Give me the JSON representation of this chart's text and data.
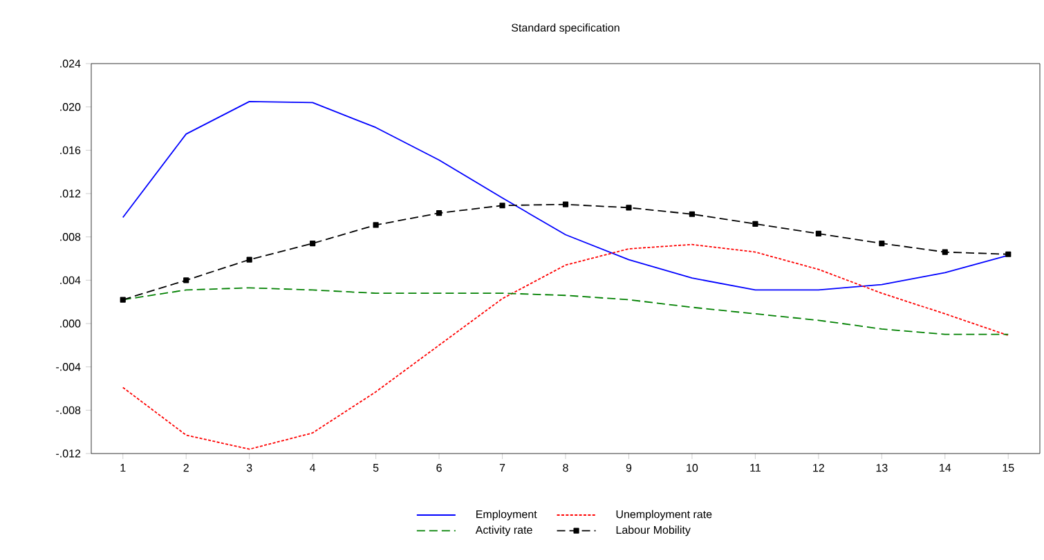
{
  "chart_data": {
    "type": "line",
    "title": "Standard specification",
    "categories": [
      "1",
      "2",
      "3",
      "4",
      "5",
      "6",
      "7",
      "8",
      "9",
      "10",
      "11",
      "12",
      "13",
      "14",
      "15"
    ],
    "series": [
      {
        "name": "Employment",
        "color": "#0000ff",
        "line_style": "solid",
        "values": [
          0.0098,
          0.0175,
          0.0205,
          0.0204,
          0.0181,
          0.0151,
          0.0116,
          0.0082,
          0.0059,
          0.0042,
          0.0031,
          0.0031,
          0.0036,
          0.0047,
          0.0063
        ]
      },
      {
        "name": "Unemployment rate",
        "color": "#ff0000",
        "line_style": "dotted",
        "values": [
          -0.0059,
          -0.0103,
          -0.0116,
          -0.0101,
          -0.0063,
          -0.002,
          0.0023,
          0.0054,
          0.0069,
          0.0073,
          0.0066,
          0.005,
          0.0028,
          0.0009,
          -0.0011
        ]
      },
      {
        "name": "Activity rate",
        "color": "#008000",
        "line_style": "dashed",
        "values": [
          0.0022,
          0.0031,
          0.0033,
          0.0031,
          0.0028,
          0.0028,
          0.0028,
          0.0026,
          0.0022,
          0.0015,
          0.0009,
          0.0003,
          -0.0005,
          -0.001,
          -0.001
        ]
      },
      {
        "name": "Labour Mobility",
        "color": "#000000",
        "line_style": "dashed",
        "marker": "square",
        "values": [
          0.0022,
          0.004,
          0.0059,
          0.0074,
          0.0091,
          0.0102,
          0.0109,
          0.011,
          0.0107,
          0.0101,
          0.0092,
          0.0083,
          0.0074,
          0.0066,
          0.0064
        ]
      }
    ],
    "ylim": [
      -0.012,
      0.024
    ],
    "yticks": [
      {
        "value": -0.012,
        "label": "-.012"
      },
      {
        "value": -0.008,
        "label": "-.008"
      },
      {
        "value": -0.004,
        "label": "-.004"
      },
      {
        "value": 0,
        "label": ".000"
      },
      {
        "value": 0.004,
        "label": ".004"
      },
      {
        "value": 0.008,
        "label": ".008"
      },
      {
        "value": 0.012,
        "label": ".012"
      },
      {
        "value": 0.016,
        "label": ".016"
      },
      {
        "value": 0.02,
        "label": ".020"
      },
      {
        "value": 0.024,
        "label": ".024"
      }
    ],
    "grid": false,
    "legend": "bottom"
  }
}
